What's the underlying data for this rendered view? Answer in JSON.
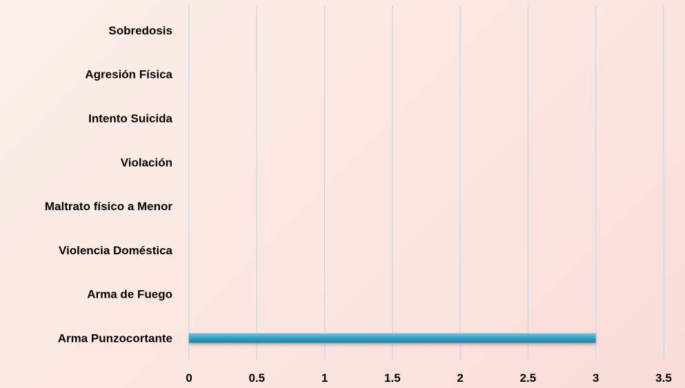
{
  "chart_data": {
    "type": "bar",
    "orientation": "horizontal",
    "categories": [
      "Arma Punzocortante",
      "Arma de Fuego",
      "Violencia Doméstica",
      "Maltrato físico a Menor",
      "Violación",
      "Intento Suicida",
      "Agresión Física",
      "Sobredosis"
    ],
    "series": [
      {
        "values": [
          3,
          0,
          0,
          0,
          0,
          0,
          0,
          0
        ],
        "color": "#3aa3c4"
      }
    ],
    "xlim": [
      0,
      3.5
    ],
    "xticks": [
      "0",
      "0.5",
      "1",
      "1.5",
      "2",
      "2.5",
      "3",
      "3.5"
    ],
    "grid": "vertical",
    "gridline_color": "#c9daf0",
    "legend": "none"
  }
}
